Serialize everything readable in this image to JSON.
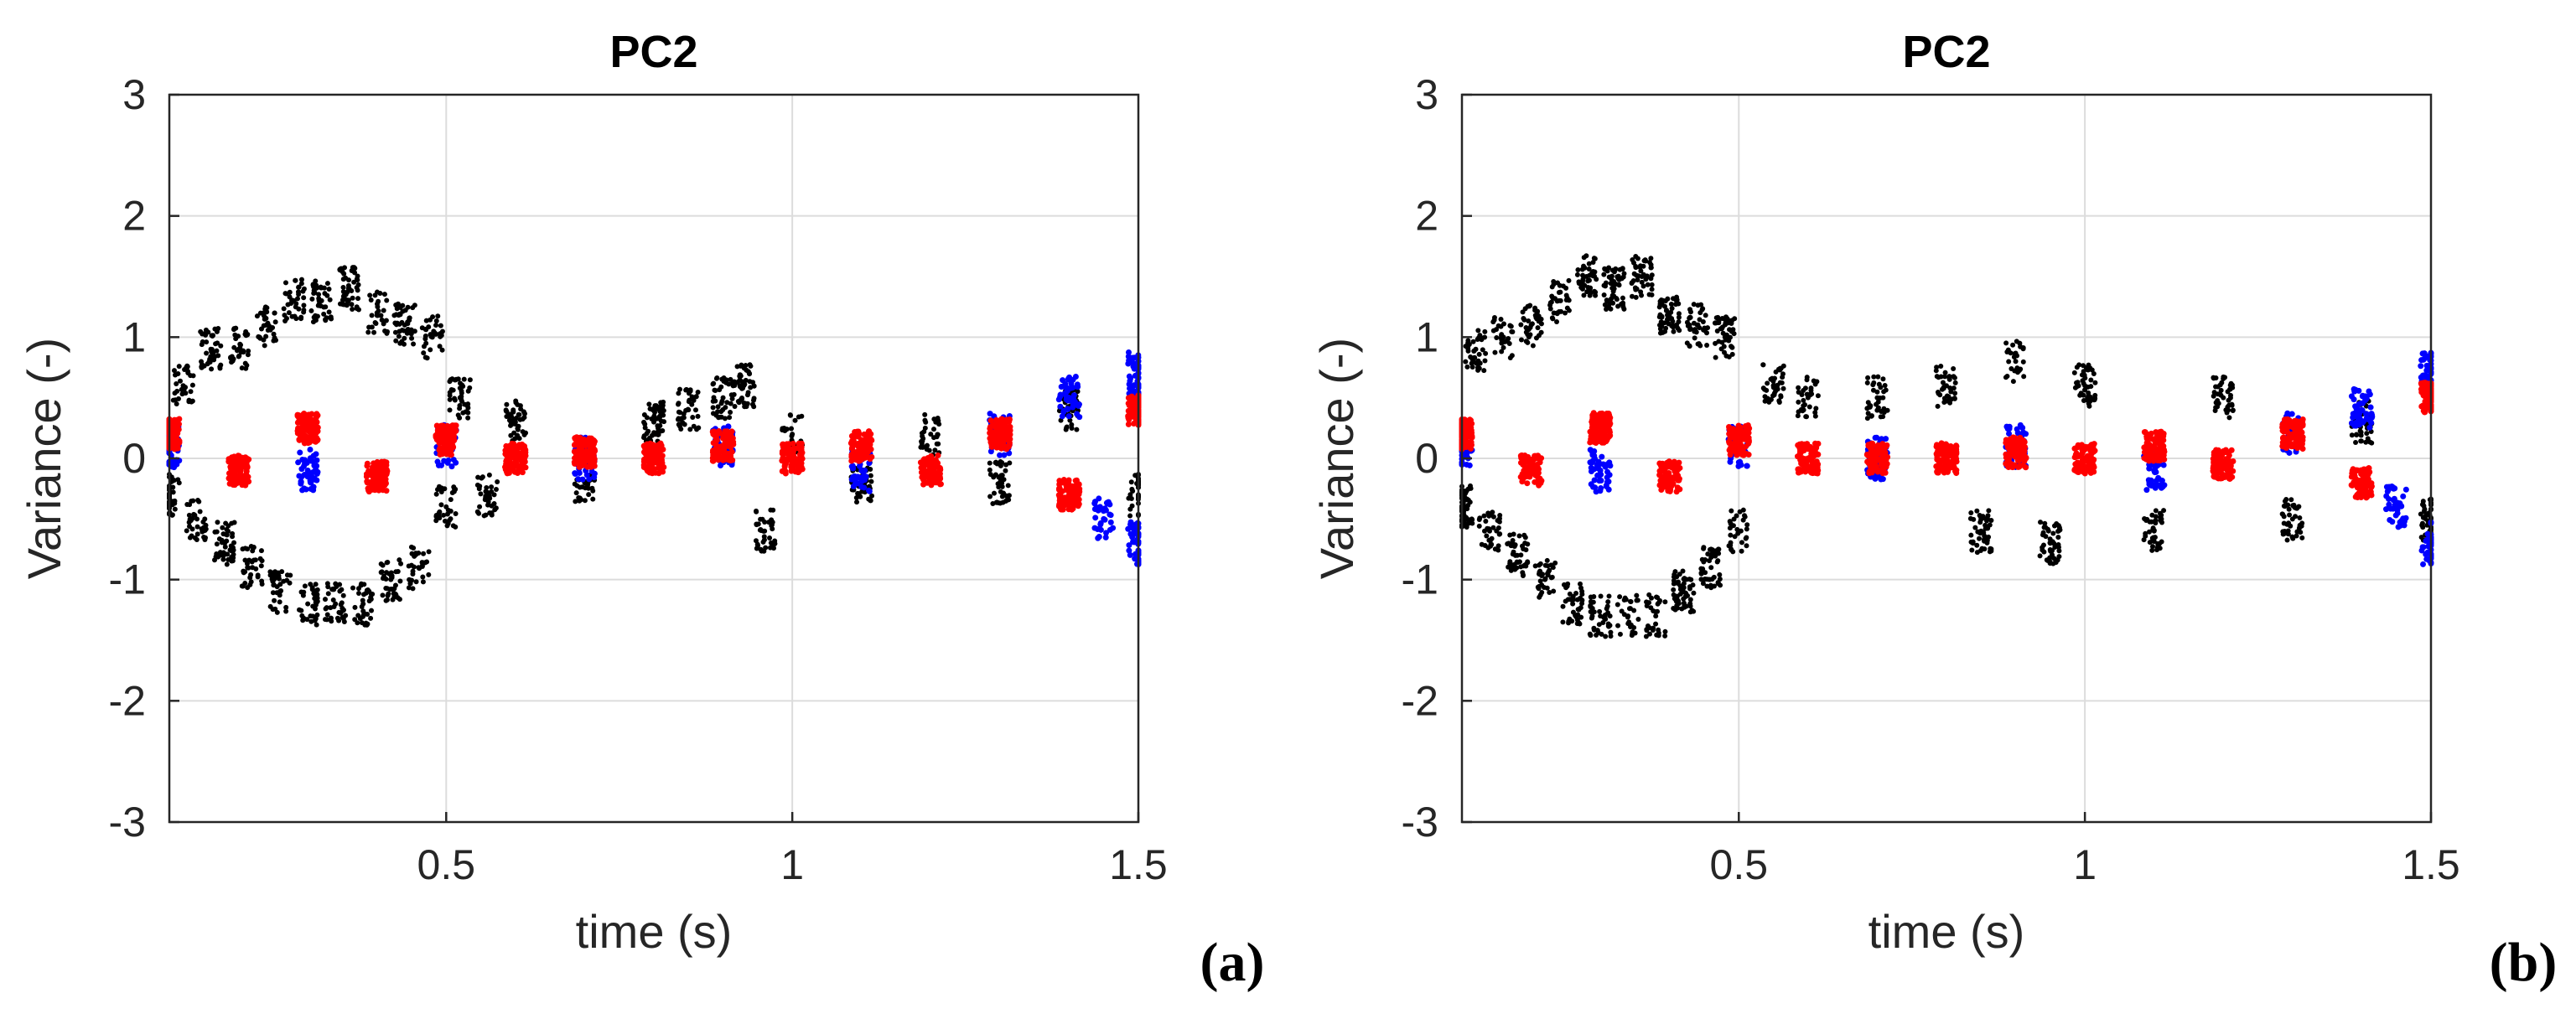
{
  "chart_data": [
    {
      "type": "scatter",
      "title": "PC2",
      "panel_label": "(a)",
      "xlabel": "time (s)",
      "ylabel": "Variance (-)",
      "xlim": [
        0.1,
        1.5
      ],
      "ylim": [
        -3,
        3
      ],
      "xticks": [
        0.5,
        1,
        1.5
      ],
      "xtick_labels": [
        "0.5",
        "1",
        "1.5"
      ],
      "yticks": [
        -3,
        -2,
        -1,
        0,
        1,
        2,
        3
      ],
      "ytick_labels": [
        "-3",
        "-2",
        "-1",
        "0",
        "1",
        "2",
        "3"
      ],
      "grid": true,
      "series": [
        {
          "name": "black",
          "color": "#000000",
          "points": [
            [
              0.1,
              -0.3
            ],
            [
              0.12,
              0.6
            ],
            [
              0.14,
              -0.5
            ],
            [
              0.16,
              0.9
            ],
            [
              0.18,
              -0.7
            ],
            [
              0.2,
              0.9
            ],
            [
              0.22,
              -0.9
            ],
            [
              0.24,
              1.1
            ],
            [
              0.26,
              -1.1
            ],
            [
              0.28,
              1.3
            ],
            [
              0.3,
              -1.2
            ],
            [
              0.32,
              1.3
            ],
            [
              0.34,
              -1.2
            ],
            [
              0.36,
              1.4
            ],
            [
              0.38,
              -1.2
            ],
            [
              0.4,
              1.2
            ],
            [
              0.42,
              -1.0
            ],
            [
              0.44,
              1.1
            ],
            [
              0.46,
              -0.9
            ],
            [
              0.48,
              1.0
            ],
            [
              0.5,
              -0.4
            ],
            [
              0.52,
              0.5
            ],
            [
              0.56,
              -0.3
            ],
            [
              0.6,
              0.3
            ],
            [
              0.7,
              -0.2
            ],
            [
              0.8,
              0.3
            ],
            [
              0.85,
              0.4
            ],
            [
              0.9,
              0.5
            ],
            [
              0.93,
              0.6
            ],
            [
              0.96,
              -0.6
            ],
            [
              1.0,
              0.2
            ],
            [
              1.1,
              -0.2
            ],
            [
              1.2,
              0.2
            ],
            [
              1.3,
              -0.2
            ],
            [
              1.4,
              0.4
            ],
            [
              1.5,
              -0.3
            ]
          ]
        },
        {
          "name": "blue",
          "color": "#0000ff",
          "points": [
            [
              0.1,
              0.1
            ],
            [
              0.3,
              -0.1
            ],
            [
              0.5,
              0.1
            ],
            [
              0.7,
              0.0
            ],
            [
              0.9,
              0.1
            ],
            [
              1.1,
              -0.1
            ],
            [
              1.3,
              0.2
            ],
            [
              1.4,
              0.5
            ],
            [
              1.45,
              -0.5
            ],
            [
              1.5,
              0.7
            ],
            [
              1.5,
              -0.7
            ]
          ]
        },
        {
          "name": "red",
          "color": "#ff0000",
          "points": [
            [
              0.1,
              0.2
            ],
            [
              0.2,
              -0.1
            ],
            [
              0.3,
              0.25
            ],
            [
              0.4,
              -0.15
            ],
            [
              0.5,
              0.15
            ],
            [
              0.6,
              0.0
            ],
            [
              0.7,
              0.05
            ],
            [
              0.8,
              0.0
            ],
            [
              0.9,
              0.1
            ],
            [
              1.0,
              0.0
            ],
            [
              1.1,
              0.1
            ],
            [
              1.2,
              -0.1
            ],
            [
              1.3,
              0.2
            ],
            [
              1.4,
              -0.3
            ],
            [
              1.5,
              0.4
            ]
          ]
        }
      ]
    },
    {
      "type": "scatter",
      "title": "PC2",
      "panel_label": "(b)",
      "xlabel": "time (s)",
      "ylabel": "Variance (-)",
      "xlim": [
        0.1,
        1.5
      ],
      "ylim": [
        -3,
        3
      ],
      "xticks": [
        0.5,
        1,
        1.5
      ],
      "xtick_labels": [
        "0.5",
        "1",
        "1.5"
      ],
      "yticks": [
        -3,
        -2,
        -1,
        0,
        1,
        2,
        3
      ],
      "ytick_labels": [
        "-3",
        "-2",
        "-1",
        "0",
        "1",
        "2",
        "3"
      ],
      "grid": true,
      "series": [
        {
          "name": "black",
          "color": "#000000",
          "points": [
            [
              0.1,
              -0.4
            ],
            [
              0.12,
              0.9
            ],
            [
              0.14,
              -0.6
            ],
            [
              0.16,
              1.0
            ],
            [
              0.18,
              -0.8
            ],
            [
              0.2,
              1.1
            ],
            [
              0.22,
              -1.0
            ],
            [
              0.24,
              1.3
            ],
            [
              0.26,
              -1.2
            ],
            [
              0.28,
              1.5
            ],
            [
              0.3,
              -1.3
            ],
            [
              0.32,
              1.4
            ],
            [
              0.34,
              -1.3
            ],
            [
              0.36,
              1.5
            ],
            [
              0.38,
              -1.3
            ],
            [
              0.4,
              1.2
            ],
            [
              0.42,
              -1.1
            ],
            [
              0.44,
              1.1
            ],
            [
              0.46,
              -0.9
            ],
            [
              0.48,
              1.0
            ],
            [
              0.5,
              -0.6
            ],
            [
              0.55,
              0.6
            ],
            [
              0.6,
              0.5
            ],
            [
              0.7,
              0.5
            ],
            [
              0.8,
              0.6
            ],
            [
              0.85,
              -0.6
            ],
            [
              0.9,
              0.8
            ],
            [
              0.95,
              -0.7
            ],
            [
              1.0,
              0.6
            ],
            [
              1.1,
              -0.6
            ],
            [
              1.2,
              0.5
            ],
            [
              1.3,
              -0.5
            ],
            [
              1.4,
              0.3
            ],
            [
              1.5,
              -0.5
            ]
          ]
        },
        {
          "name": "blue",
          "color": "#0000ff",
          "points": [
            [
              0.1,
              0.1
            ],
            [
              0.3,
              -0.1
            ],
            [
              0.5,
              0.1
            ],
            [
              0.7,
              0.0
            ],
            [
              0.9,
              0.1
            ],
            [
              1.1,
              -0.1
            ],
            [
              1.3,
              0.2
            ],
            [
              1.4,
              0.4
            ],
            [
              1.45,
              -0.4
            ],
            [
              1.5,
              0.7
            ],
            [
              1.5,
              -0.7
            ]
          ]
        },
        {
          "name": "red",
          "color": "#ff0000",
          "points": [
            [
              0.1,
              0.2
            ],
            [
              0.2,
              -0.1
            ],
            [
              0.3,
              0.25
            ],
            [
              0.4,
              -0.15
            ],
            [
              0.5,
              0.15
            ],
            [
              0.6,
              0.0
            ],
            [
              0.7,
              0.0
            ],
            [
              0.8,
              0.0
            ],
            [
              0.9,
              0.05
            ],
            [
              1.0,
              0.0
            ],
            [
              1.1,
              0.1
            ],
            [
              1.2,
              -0.05
            ],
            [
              1.3,
              0.2
            ],
            [
              1.4,
              -0.2
            ],
            [
              1.5,
              0.5
            ]
          ]
        }
      ]
    }
  ]
}
